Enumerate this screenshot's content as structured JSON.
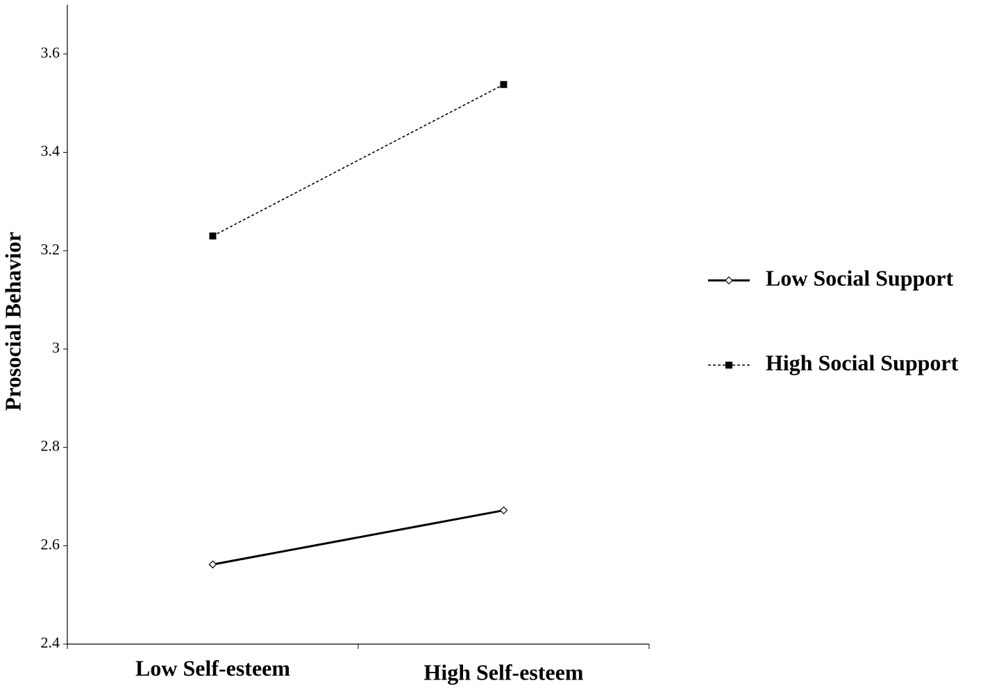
{
  "chart_data": {
    "type": "line",
    "y_label": "Prosocial Behavior",
    "categories": [
      "Low Self-esteem",
      "High Self-esteem"
    ],
    "series": [
      {
        "name": "Low Social Support",
        "color": "#000000",
        "dash": "none",
        "marker": "diamond",
        "values": [
          2.562,
          2.672
        ]
      },
      {
        "name": "High Social Support",
        "color": "#000000",
        "dash": "4,3",
        "marker": "square",
        "values": [
          3.23,
          3.538
        ]
      }
    ],
    "ylim": [
      2.4,
      3.7
    ],
    "yticks": [
      2.4,
      2.6,
      2.8,
      3,
      3.2,
      3.4,
      3.6
    ],
    "grid": false,
    "legend": "right"
  }
}
